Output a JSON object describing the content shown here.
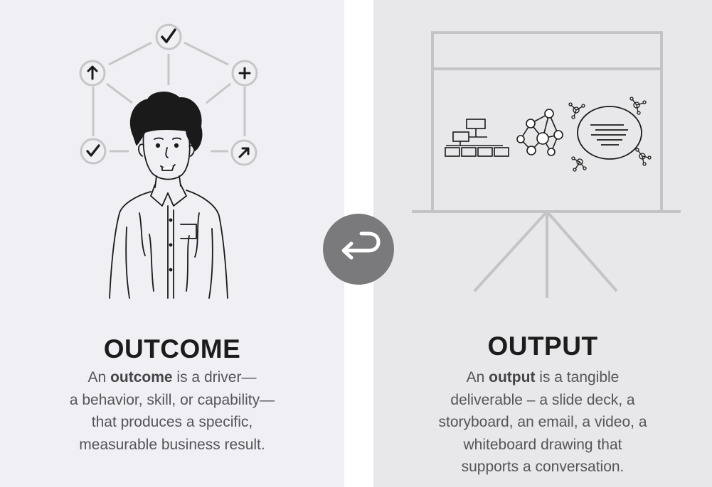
{
  "outcome": {
    "title": "OUTCOME",
    "desc_pre": "An ",
    "desc_bold": "outcome",
    "desc_line1_post": " is a driver—",
    "desc_line2": "a behavior, skill, or capability—",
    "desc_line3": "that produces a specific,",
    "desc_line4": "measurable business result.",
    "badges": [
      "check-icon",
      "arrow-up-icon",
      "plus-icon",
      "check-icon",
      "arrow-up-right-icon"
    ]
  },
  "output": {
    "title": "OUTPUT",
    "desc_pre": "An ",
    "desc_bold": "output",
    "desc_line1_post": " is a tangible",
    "desc_line2": "deliverable – a slide deck, a",
    "desc_line3": "storyboard, an email, a video, a",
    "desc_line4": "whiteboard drawing that",
    "desc_line5": "supports a conversation."
  },
  "swap_button": {
    "icon": "return-arrow-icon"
  },
  "colors": {
    "left_bg": "#f0f0f4",
    "right_bg": "#e8e8ea",
    "heading": "#1c1c1c",
    "body_text": "#555558",
    "line_art": "#c4c4c6",
    "button_bg": "#7a7a7d"
  }
}
